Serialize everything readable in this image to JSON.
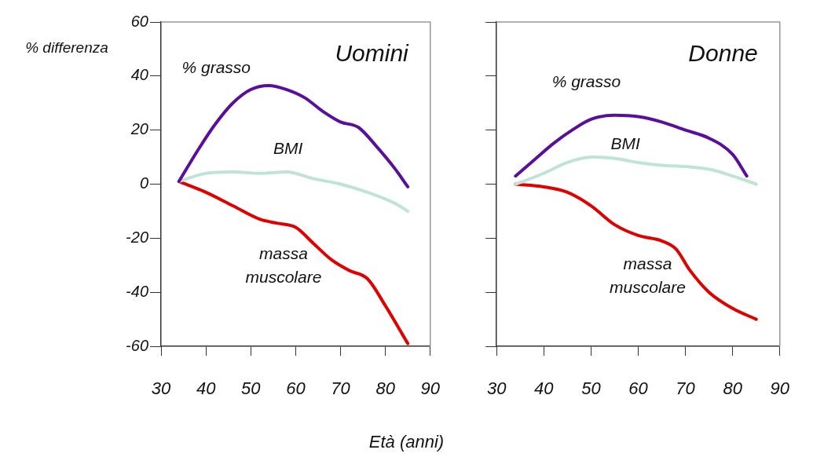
{
  "chart_data": [
    {
      "type": "line",
      "title": "Uomini",
      "ylabel": "% differenza",
      "xlabel": "Età (anni)",
      "xlim": [
        30,
        90
      ],
      "xticks": [
        30,
        40,
        50,
        60,
        70,
        80,
        90
      ],
      "ylim": [
        -60,
        60
      ],
      "yticks": [
        -60,
        -40,
        -20,
        0,
        20,
        40,
        60
      ],
      "grid": false,
      "legend": false,
      "series": [
        {
          "name": "% grasso",
          "color": "#5a0f9c",
          "x": [
            34,
            38,
            42,
            46,
            50,
            54,
            58,
            62,
            66,
            70,
            74,
            78,
            82,
            85
          ],
          "values": [
            1,
            12,
            22,
            30,
            35,
            36.5,
            35,
            32,
            27,
            23,
            21,
            14,
            6,
            -1
          ]
        },
        {
          "name": "BMI",
          "color": "#bfe3d6",
          "x": [
            34,
            40,
            46,
            52,
            58,
            64,
            70,
            76,
            82,
            85
          ],
          "values": [
            1,
            4,
            4.5,
            4,
            4.5,
            2,
            0,
            -3,
            -7,
            -10
          ]
        },
        {
          "name": "massa muscolare",
          "color": "#e00000",
          "x": [
            34,
            40,
            46,
            52,
            56,
            60,
            64,
            68,
            72,
            76,
            80,
            85
          ],
          "values": [
            1,
            -3,
            -8,
            -13,
            -14.5,
            -16,
            -22,
            -28,
            -32,
            -35,
            -45,
            -59
          ]
        }
      ]
    },
    {
      "type": "line",
      "title": "Donne",
      "xlim": [
        30,
        90
      ],
      "xticks": [
        30,
        40,
        50,
        60,
        70,
        80,
        90
      ],
      "ylim": [
        -60,
        60
      ],
      "yticks": [
        -60,
        -40,
        -20,
        0,
        20,
        40,
        60
      ],
      "tick_labels": "x",
      "grid": false,
      "legend": false,
      "series": [
        {
          "name": "% grasso",
          "color": "#5a0f9c",
          "x": [
            34,
            38,
            42,
            46,
            50,
            55,
            60,
            65,
            70,
            75,
            80,
            83
          ],
          "values": [
            3,
            9,
            15,
            20,
            24,
            25.5,
            25,
            23,
            20,
            17,
            11,
            3
          ]
        },
        {
          "name": "BMI",
          "color": "#bfe3d6",
          "x": [
            34,
            40,
            45,
            50,
            55,
            60,
            65,
            70,
            75,
            80,
            85
          ],
          "values": [
            0,
            4,
            8,
            10,
            9.5,
            8,
            7,
            6.5,
            5.5,
            3,
            0
          ]
        },
        {
          "name": "massa muscolare",
          "color": "#e00000",
          "x": [
            34,
            40,
            45,
            50,
            55,
            60,
            65,
            68,
            71,
            75,
            80,
            85
          ],
          "values": [
            0,
            -1,
            -3,
            -8,
            -15,
            -19,
            -21,
            -24,
            -32,
            -40,
            -46,
            -50
          ]
        }
      ]
    }
  ]
}
